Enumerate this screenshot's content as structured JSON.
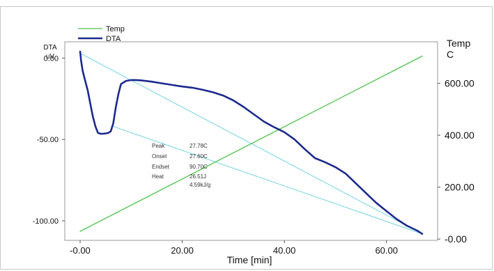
{
  "chart_data": {
    "type": "line",
    "title": "",
    "xlabel": "Time  [min]",
    "xlim": [
      -3,
      70
    ],
    "xticks": [
      "-0.00",
      "20.00",
      "40.00",
      "60.00"
    ],
    "xtick_values": [
      0,
      20,
      40,
      60
    ],
    "left_axis": {
      "label_line1": "DTA",
      "label_line2": "uV",
      "ylim": [
        -112,
        10
      ],
      "ticks": [
        "0.00",
        "-50.00",
        "-100.00"
      ],
      "tick_values": [
        0,
        -50,
        -100
      ]
    },
    "right_axis": {
      "label_line1": "Temp",
      "label_line2": "C",
      "ylim": [
        -5,
        760
      ],
      "ticks": [
        "600.00",
        "400.00",
        "200.00",
        "-0.00"
      ],
      "tick_values": [
        600,
        400,
        200,
        0
      ]
    },
    "legend": {
      "placement": "top-left",
      "entries": [
        {
          "label": "Temp",
          "color": "#4ec24e"
        },
        {
          "label": "DTA",
          "color": "#1c2a8c"
        }
      ]
    },
    "series": [
      {
        "name": "Temp",
        "axis": "right",
        "color": "#4ec24e",
        "x": [
          0,
          67
        ],
        "y": [
          30,
          705
        ]
      },
      {
        "name": "DTA",
        "axis": "left",
        "color": "#1c2a8c",
        "x": [
          0,
          0.2,
          0.5,
          1,
          1.5,
          2,
          2.5,
          3,
          3.5,
          4,
          4.5,
          5,
          5.5,
          6,
          6.5,
          7,
          7.5,
          8,
          9,
          10,
          11,
          12,
          14,
          16,
          18,
          20,
          22,
          24,
          26,
          28,
          30,
          32,
          34,
          36,
          38,
          40,
          42,
          44,
          46,
          48,
          50,
          52,
          54,
          56,
          58,
          60,
          62,
          64,
          66,
          67
        ],
        "y": [
          4,
          -2,
          -8,
          -14,
          -20,
          -28,
          -36,
          -42,
          -46,
          -46.5,
          -46.5,
          -46.3,
          -46,
          -45,
          -40,
          -30,
          -22,
          -16,
          -14,
          -13.5,
          -13.5,
          -13.7,
          -14.5,
          -15.5,
          -16.5,
          -17.5,
          -18.2,
          -19.5,
          -21,
          -23,
          -26,
          -30,
          -34.5,
          -39,
          -42.5,
          -45.5,
          -50,
          -56,
          -61.5,
          -64,
          -67,
          -71,
          -77,
          -83,
          -89,
          -94,
          -99,
          -103,
          -106,
          -108
        ]
      },
      {
        "name": "baseline-1",
        "axis": "left",
        "color": "#7fd6e6",
        "x": [
          0,
          67
        ],
        "y": [
          3,
          -108
        ]
      },
      {
        "name": "baseline-2",
        "axis": "left",
        "color": "#7fd6e6",
        "x": [
          6.5,
          67
        ],
        "y": [
          -42,
          -108
        ]
      }
    ],
    "annotation": {
      "rows": [
        {
          "label": "Peak",
          "value": "27.78C"
        },
        {
          "label": "Onset",
          "value": "27.60C"
        },
        {
          "label": "Endset",
          "value": "90.70C"
        },
        {
          "label": "Heat",
          "value": "26.51J"
        },
        {
          "label": "",
          "value": "4.59kJ/g"
        }
      ]
    },
    "grid": false
  }
}
